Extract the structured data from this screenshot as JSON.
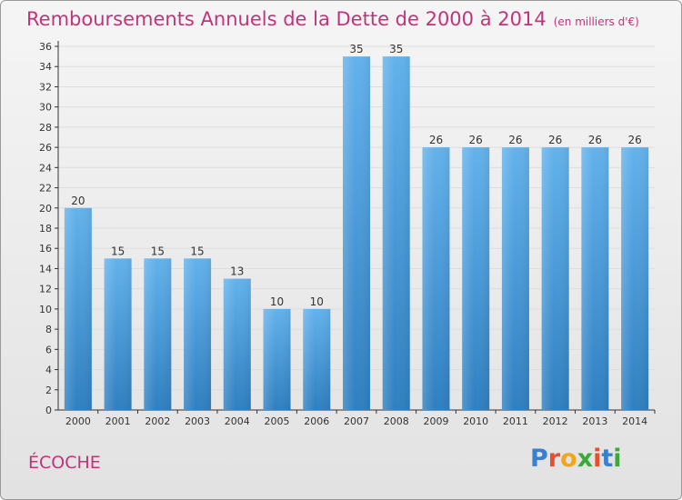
{
  "title": "Remboursements Annuels de la Dette de 2000 à 2014",
  "unit_label": "(en milliers d'€)",
  "commune": "ÉCOCHE",
  "logo": {
    "text": "Proxiti",
    "letter_colors": [
      "#3a7fd0",
      "#e94f2d",
      "#f2a61e",
      "#3aaa3a",
      "#e94f2d",
      "#3a7fd0",
      "#3aaa3a"
    ]
  },
  "colors": {
    "title": "#c0347a",
    "bar_top": "#63b2ec",
    "bar_bottom": "#2f7fc0",
    "axis": "#333333",
    "grid": "#dddddd"
  },
  "chart_data": {
    "type": "bar",
    "categories": [
      "2000",
      "2001",
      "2002",
      "2003",
      "2004",
      "2005",
      "2006",
      "2007",
      "2008",
      "2009",
      "2010",
      "2011",
      "2012",
      "2013",
      "2014"
    ],
    "values": [
      20,
      15,
      15,
      15,
      13,
      10,
      10,
      35,
      35,
      26,
      26,
      26,
      26,
      26,
      26
    ],
    "data_labels": [
      "20",
      "15",
      "15",
      "15",
      "13",
      "10",
      "10",
      "35",
      "35",
      "26",
      "26",
      "26",
      "26",
      "26",
      "26"
    ],
    "yticks": [
      0,
      2,
      4,
      6,
      8,
      10,
      12,
      14,
      16,
      18,
      20,
      22,
      24,
      26,
      28,
      30,
      32,
      34,
      36
    ],
    "ylim": [
      0,
      36
    ],
    "grid": true,
    "legend": "none",
    "xlabel": "",
    "ylabel": ""
  }
}
